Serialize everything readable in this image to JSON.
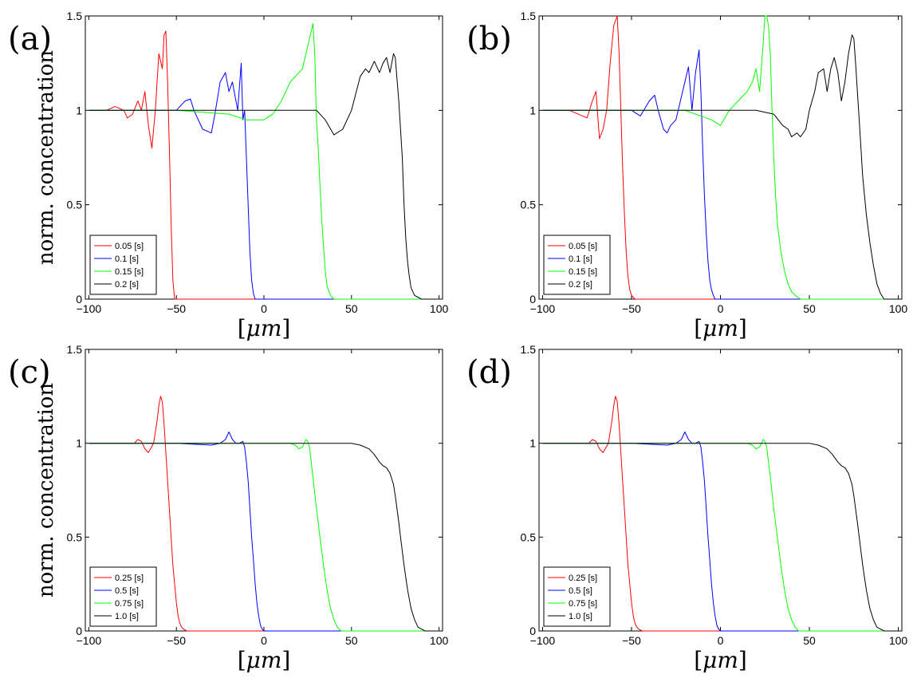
{
  "chart_data": [
    {
      "type": "line",
      "panel_label": "(a)",
      "xlabel_prefix": "[",
      "xlabel_unit": "μm",
      "xlabel_suffix": "]",
      "ylabel": "norm. concentration",
      "xlim": [
        -102,
        102
      ],
      "ylim": [
        0,
        1.5
      ],
      "x_ticks": [
        -100,
        -50,
        0,
        50,
        100
      ],
      "y_ticks": [
        0,
        0.5,
        1,
        1.5
      ],
      "x_tick_labels": [
        "−100",
        "−50",
        "0",
        "50",
        "100"
      ],
      "y_tick_labels": [
        "0",
        "0.5",
        "1",
        "1.5"
      ],
      "legend_position": "bottom-left",
      "series": [
        {
          "name": "0.05 [s]",
          "color": "#ff0000",
          "x": [
            -100,
            -90,
            -85,
            -80,
            -78,
            -75,
            -72,
            -70,
            -68,
            -66,
            -64,
            -62,
            -60,
            -58,
            -57,
            -56,
            -55,
            -54,
            -53,
            -52,
            -51,
            -50,
            -40,
            0,
            50,
            100
          ],
          "y": [
            1.0,
            1.0,
            1.02,
            1.0,
            0.96,
            0.98,
            1.05,
            1.0,
            1.1,
            0.92,
            0.8,
            1.0,
            1.3,
            1.22,
            1.4,
            1.42,
            1.15,
            0.8,
            0.4,
            0.1,
            0.0,
            0.0,
            0.0,
            0.0,
            0.0,
            0.0
          ]
        },
        {
          "name": "0.1 [s]",
          "color": "#0000ff",
          "x": [
            -100,
            -80,
            -60,
            -50,
            -45,
            -42,
            -40,
            -35,
            -30,
            -28,
            -25,
            -22,
            -20,
            -18,
            -15,
            -13,
            -12,
            -11,
            -10,
            -9,
            -8,
            -7,
            -6,
            -5,
            0,
            50,
            100
          ],
          "y": [
            1.0,
            1.0,
            1.0,
            1.0,
            1.05,
            1.06,
            1.0,
            0.9,
            0.88,
            0.98,
            1.15,
            1.2,
            1.1,
            1.15,
            1.0,
            1.25,
            0.95,
            1.0,
            0.75,
            0.5,
            0.25,
            0.1,
            0.03,
            0.0,
            0.0,
            0.0,
            0.0
          ]
        },
        {
          "name": "0.15 [s]",
          "color": "#00ff00",
          "x": [
            -100,
            -50,
            -20,
            -10,
            0,
            5,
            10,
            15,
            20,
            22,
            24,
            26,
            28,
            29,
            30,
            31,
            32,
            33,
            34,
            35,
            36,
            38,
            40,
            50,
            100
          ],
          "y": [
            1.0,
            1.0,
            0.98,
            0.95,
            0.95,
            0.98,
            1.05,
            1.15,
            1.2,
            1.22,
            1.3,
            1.38,
            1.46,
            1.3,
            0.95,
            0.8,
            0.6,
            0.42,
            0.28,
            0.15,
            0.07,
            0.02,
            0.0,
            0.0,
            0.0
          ]
        },
        {
          "name": "0.2 [s]",
          "color": "#000000",
          "x": [
            -100,
            -50,
            -20,
            0,
            20,
            30,
            35,
            40,
            45,
            50,
            55,
            58,
            60,
            63,
            66,
            68,
            70,
            72,
            74,
            75,
            77,
            79,
            80,
            81,
            82,
            83,
            84,
            86,
            90,
            100
          ],
          "y": [
            1.0,
            1.0,
            1.0,
            1.0,
            1.0,
            1.0,
            0.95,
            0.87,
            0.9,
            1.0,
            1.18,
            1.22,
            1.2,
            1.26,
            1.2,
            1.25,
            1.28,
            1.2,
            1.3,
            1.28,
            1.05,
            0.75,
            0.5,
            0.32,
            0.2,
            0.12,
            0.06,
            0.02,
            0.0,
            0.0
          ]
        }
      ]
    },
    {
      "type": "line",
      "panel_label": "(b)",
      "xlabel_prefix": "[",
      "xlabel_unit": "μm",
      "xlabel_suffix": "]",
      "ylabel": "",
      "xlim": [
        -102,
        102
      ],
      "ylim": [
        0,
        1.5
      ],
      "x_ticks": [
        -100,
        -50,
        0,
        50,
        100
      ],
      "y_ticks": [
        0,
        0.5,
        1,
        1.5
      ],
      "x_tick_labels": [
        "−100",
        "−50",
        "0",
        "50",
        "100"
      ],
      "y_tick_labels": [
        "0",
        "0.5",
        "1",
        "1.5"
      ],
      "legend_position": "bottom-left",
      "series": [
        {
          "name": "0.05 [s]",
          "color": "#ff0000",
          "x": [
            -100,
            -85,
            -80,
            -75,
            -72,
            -70,
            -68,
            -66,
            -64,
            -62,
            -60,
            -58,
            -57,
            -56,
            -55,
            -54,
            -53,
            -52,
            -51,
            -50,
            -48,
            -45,
            0,
            50,
            100
          ],
          "y": [
            1.0,
            1.0,
            0.98,
            0.96,
            1.05,
            1.1,
            0.85,
            0.9,
            1.0,
            1.25,
            1.45,
            1.5,
            1.3,
            1.0,
            0.7,
            0.45,
            0.25,
            0.12,
            0.05,
            0.02,
            0.0,
            0.0,
            0.0,
            0.0,
            0.0
          ]
        },
        {
          "name": "0.1 [s]",
          "color": "#0000ff",
          "x": [
            -100,
            -60,
            -50,
            -45,
            -40,
            -37,
            -35,
            -32,
            -30,
            -28,
            -25,
            -20,
            -18,
            -16,
            -14,
            -12,
            -11,
            -10,
            -9,
            -8,
            -7,
            -6,
            -5,
            -4,
            -3,
            -2,
            0,
            50,
            100
          ],
          "y": [
            1.0,
            1.0,
            1.0,
            0.97,
            1.05,
            1.08,
            1.0,
            0.9,
            0.88,
            0.92,
            0.95,
            1.15,
            1.23,
            1.0,
            1.2,
            1.32,
            1.1,
            0.8,
            0.55,
            0.35,
            0.2,
            0.1,
            0.05,
            0.02,
            0.0,
            0.0,
            0.0,
            0.0,
            0.0
          ]
        },
        {
          "name": "0.15 [s]",
          "color": "#00ff00",
          "x": [
            -100,
            -50,
            -20,
            -5,
            0,
            5,
            10,
            15,
            18,
            20,
            22,
            24,
            25,
            26,
            27,
            28,
            29,
            30,
            31,
            32,
            34,
            36,
            38,
            40,
            42,
            45,
            50,
            100
          ],
          "y": [
            1.0,
            1.0,
            1.0,
            0.95,
            0.92,
            1.0,
            1.05,
            1.1,
            1.15,
            1.22,
            1.1,
            1.35,
            1.5,
            1.5,
            1.45,
            1.3,
            1.0,
            0.75,
            0.55,
            0.4,
            0.25,
            0.15,
            0.08,
            0.04,
            0.02,
            0.0,
            0.0,
            0.0
          ]
        },
        {
          "name": "0.2 [s]",
          "color": "#000000",
          "x": [
            -100,
            -50,
            -20,
            0,
            20,
            30,
            35,
            38,
            40,
            43,
            45,
            48,
            50,
            53,
            55,
            58,
            60,
            62,
            64,
            66,
            68,
            70,
            72,
            74,
            75,
            76,
            78,
            80,
            82,
            84,
            86,
            88,
            90,
            92,
            100
          ],
          "y": [
            1.0,
            1.0,
            1.0,
            1.0,
            1.0,
            0.98,
            0.92,
            0.9,
            0.86,
            0.88,
            0.86,
            0.9,
            1.0,
            1.1,
            1.2,
            1.22,
            1.1,
            1.22,
            1.28,
            1.2,
            1.05,
            1.15,
            1.3,
            1.4,
            1.38,
            1.25,
            0.95,
            0.65,
            0.45,
            0.3,
            0.18,
            0.08,
            0.03,
            0.0,
            0.0
          ]
        }
      ]
    },
    {
      "type": "line",
      "panel_label": "(c)",
      "xlabel_prefix": "[",
      "xlabel_unit": "μm",
      "xlabel_suffix": "]",
      "ylabel": "norm. concentration",
      "xlim": [
        -102,
        102
      ],
      "ylim": [
        0,
        1.5
      ],
      "x_ticks": [
        -100,
        -50,
        0,
        50,
        100
      ],
      "y_ticks": [
        0,
        0.5,
        1,
        1.5
      ],
      "x_tick_labels": [
        "−100",
        "−50",
        "0",
        "50",
        "100"
      ],
      "y_tick_labels": [
        "0",
        "0.5",
        "1",
        "1.5"
      ],
      "legend_position": "bottom-left",
      "series": [
        {
          "name": "0.25 [s]",
          "color": "#ff0000",
          "x": [
            -100,
            -80,
            -74,
            -72,
            -70,
            -68,
            -66,
            -63,
            -61,
            -60,
            -59,
            -58,
            -57,
            -56,
            -55,
            -54,
            -53,
            -52,
            -51,
            -50,
            -49,
            -48,
            -47,
            -46,
            -44,
            0,
            50,
            100
          ],
          "y": [
            1.0,
            1.0,
            1.0,
            1.02,
            1.01,
            0.97,
            0.95,
            1.0,
            1.12,
            1.2,
            1.25,
            1.22,
            1.1,
            0.95,
            0.8,
            0.65,
            0.5,
            0.35,
            0.25,
            0.15,
            0.08,
            0.04,
            0.02,
            0.01,
            0.0,
            0.0,
            0.0,
            0.0
          ]
        },
        {
          "name": "0.5 [s]",
          "color": "#0000ff",
          "x": [
            -100,
            -50,
            -30,
            -25,
            -22,
            -20,
            -18,
            -16,
            -14,
            -12,
            -11,
            -10,
            -9,
            -8,
            -7,
            -6,
            -5,
            -4,
            -3,
            -2,
            -1,
            0,
            50,
            100
          ],
          "y": [
            1.0,
            1.0,
            0.99,
            1.0,
            1.02,
            1.06,
            1.02,
            1.0,
            1.0,
            1.01,
            0.98,
            0.9,
            0.8,
            0.65,
            0.5,
            0.38,
            0.25,
            0.15,
            0.08,
            0.03,
            0.01,
            0.0,
            0.0,
            0.0
          ]
        },
        {
          "name": "0.75 [s]",
          "color": "#00ff00",
          "x": [
            -100,
            -20,
            0,
            10,
            15,
            18,
            20,
            22,
            24,
            25,
            26,
            27,
            28,
            30,
            32,
            34,
            36,
            38,
            40,
            42,
            44,
            46,
            100
          ],
          "y": [
            1.0,
            1.0,
            1.0,
            1.0,
            1.0,
            0.99,
            0.97,
            0.98,
            1.02,
            1.01,
            0.98,
            0.9,
            0.82,
            0.65,
            0.5,
            0.35,
            0.22,
            0.12,
            0.06,
            0.02,
            0.0,
            0.0,
            0.0
          ]
        },
        {
          "name": "1.0 [s]",
          "color": "#000000",
          "x": [
            -100,
            0,
            40,
            50,
            55,
            60,
            63,
            66,
            68,
            70,
            72,
            74,
            75,
            76,
            77,
            78,
            80,
            82,
            84,
            86,
            88,
            90,
            92,
            95,
            100
          ],
          "y": [
            1.0,
            1.0,
            1.0,
            1.0,
            0.99,
            0.97,
            0.94,
            0.9,
            0.88,
            0.87,
            0.84,
            0.78,
            0.72,
            0.65,
            0.58,
            0.5,
            0.35,
            0.22,
            0.12,
            0.06,
            0.02,
            0.01,
            0.0,
            0.0,
            0.0
          ]
        }
      ]
    },
    {
      "type": "line",
      "panel_label": "(d)",
      "xlabel_prefix": "[",
      "xlabel_unit": "μm",
      "xlabel_suffix": "]",
      "ylabel": "",
      "xlim": [
        -102,
        102
      ],
      "ylim": [
        0,
        1.5
      ],
      "x_ticks": [
        -100,
        -50,
        0,
        50,
        100
      ],
      "y_ticks": [
        0,
        0.5,
        1,
        1.5
      ],
      "x_tick_labels": [
        "−100",
        "−50",
        "0",
        "50",
        "100"
      ],
      "y_tick_labels": [
        "0",
        "0.5",
        "1",
        "1.5"
      ],
      "legend_position": "bottom-left",
      "series": [
        {
          "name": "0.25 [s]",
          "color": "#ff0000",
          "x": [
            -100,
            -80,
            -74,
            -72,
            -70,
            -68,
            -66,
            -63,
            -61,
            -60,
            -59,
            -58,
            -57,
            -56,
            -55,
            -54,
            -53,
            -52,
            -51,
            -50,
            -49,
            -48,
            -47,
            -46,
            -44,
            0,
            50,
            100
          ],
          "y": [
            1.0,
            1.0,
            1.0,
            1.02,
            1.01,
            0.97,
            0.95,
            1.0,
            1.12,
            1.2,
            1.25,
            1.22,
            1.1,
            0.95,
            0.8,
            0.65,
            0.5,
            0.35,
            0.25,
            0.15,
            0.08,
            0.04,
            0.02,
            0.01,
            0.0,
            0.0,
            0.0,
            0.0
          ]
        },
        {
          "name": "0.5 [s]",
          "color": "#0000ff",
          "x": [
            -100,
            -50,
            -30,
            -25,
            -22,
            -20,
            -18,
            -16,
            -14,
            -12,
            -11,
            -10,
            -9,
            -8,
            -7,
            -6,
            -5,
            -4,
            -3,
            -2,
            -1,
            0,
            50,
            100
          ],
          "y": [
            1.0,
            1.0,
            0.99,
            1.0,
            1.02,
            1.06,
            1.02,
            1.0,
            1.0,
            1.01,
            0.98,
            0.9,
            0.8,
            0.65,
            0.5,
            0.38,
            0.25,
            0.15,
            0.08,
            0.03,
            0.01,
            0.0,
            0.0,
            0.0
          ]
        },
        {
          "name": "0.75 [s]",
          "color": "#00ff00",
          "x": [
            -100,
            -20,
            0,
            10,
            15,
            18,
            20,
            22,
            24,
            25,
            26,
            27,
            28,
            30,
            32,
            34,
            36,
            38,
            40,
            42,
            44,
            46,
            100
          ],
          "y": [
            1.0,
            1.0,
            1.0,
            1.0,
            1.0,
            0.99,
            0.97,
            0.98,
            1.02,
            1.01,
            0.98,
            0.9,
            0.82,
            0.65,
            0.5,
            0.35,
            0.22,
            0.12,
            0.06,
            0.02,
            0.0,
            0.0,
            0.0
          ]
        },
        {
          "name": "1.0 [s]",
          "color": "#000000",
          "x": [
            -100,
            0,
            40,
            50,
            55,
            60,
            63,
            66,
            68,
            70,
            72,
            74,
            75,
            76,
            77,
            78,
            80,
            82,
            84,
            86,
            88,
            90,
            92,
            95,
            100
          ],
          "y": [
            1.0,
            1.0,
            1.0,
            1.0,
            0.99,
            0.97,
            0.94,
            0.9,
            0.88,
            0.87,
            0.84,
            0.78,
            0.72,
            0.65,
            0.58,
            0.5,
            0.35,
            0.22,
            0.12,
            0.06,
            0.02,
            0.01,
            0.0,
            0.0,
            0.0
          ]
        }
      ]
    }
  ]
}
